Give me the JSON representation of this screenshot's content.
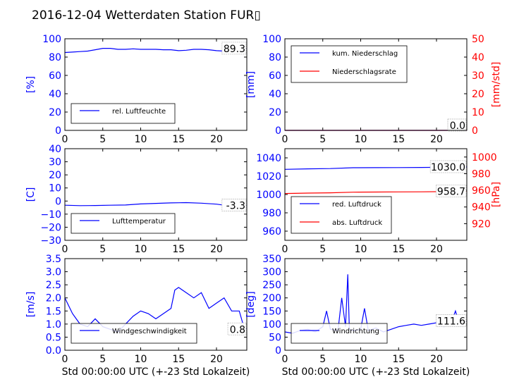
{
  "figure": {
    "title": "2016-12-04 Wetterdaten Station FUR▯"
  },
  "colors": {
    "blue": "#0000ff",
    "red": "#ff0000",
    "black": "#000000"
  },
  "chart_data": [
    {
      "id": "humidity",
      "type": "line",
      "xlim": [
        0,
        24
      ],
      "ylim": [
        0,
        100
      ],
      "xticks": [
        0,
        5,
        10,
        15,
        20
      ],
      "yticks": [
        0,
        20,
        40,
        60,
        80,
        100
      ],
      "ylabel": "[%]",
      "xlabel": "",
      "legend": {
        "placement": "lower-left",
        "entries": [
          "rel. Luftfeuchte"
        ]
      },
      "annotations": [
        {
          "text": "89.3",
          "x": 23.9,
          "y": 89.3
        }
      ],
      "series": [
        {
          "name": "rel. Luftfeuchte",
          "color": "#0000ff",
          "x": [
            0,
            1,
            2,
            3,
            4,
            5,
            6,
            7,
            8,
            9,
            10,
            11,
            12,
            13,
            14,
            15,
            16,
            17,
            18,
            19,
            20,
            21,
            22,
            23,
            24
          ],
          "y": [
            85,
            85.5,
            86,
            86.5,
            88,
            89.5,
            89.5,
            88.5,
            88.5,
            89,
            88.5,
            88.5,
            88.5,
            88,
            88,
            87,
            87.5,
            88.5,
            88.5,
            88,
            87,
            86.5,
            87,
            88,
            89.3
          ]
        }
      ]
    },
    {
      "id": "rain",
      "type": "line",
      "xlim": [
        0,
        24
      ],
      "ylim": [
        0,
        100
      ],
      "y2lim": [
        0,
        50
      ],
      "xticks": [
        0,
        5,
        10,
        15,
        20
      ],
      "yticks": [
        0,
        20,
        40,
        60,
        80,
        100
      ],
      "y2ticks": [
        0,
        10,
        20,
        30,
        40,
        50
      ],
      "ylabel": "[mm]",
      "y2label": "[mm/std]",
      "xlabel": "",
      "legend": {
        "placement": "upper-left",
        "entries": [
          "kum. Niederschlag",
          "Niederschlagsrate"
        ]
      },
      "annotations": [
        {
          "text": "0.0",
          "x": 23.9,
          "y": 0
        },
        {
          "text": "0.0",
          "x": 23.9,
          "y": 0
        }
      ],
      "series": [
        {
          "name": "kum. Niederschlag",
          "color": "#0000ff",
          "axis": "left",
          "x": [
            0,
            24
          ],
          "y": [
            0,
            0
          ]
        },
        {
          "name": "Niederschlagsrate",
          "color": "#ff0000",
          "axis": "right",
          "x": [
            0,
            24
          ],
          "y": [
            0,
            0
          ]
        }
      ]
    },
    {
      "id": "temperature",
      "type": "line",
      "xlim": [
        0,
        24
      ],
      "ylim": [
        -30,
        40
      ],
      "xticks": [
        0,
        5,
        10,
        15,
        20
      ],
      "yticks": [
        -30,
        -20,
        -10,
        0,
        10,
        20,
        30,
        40
      ],
      "ylabel": "[C]",
      "xlabel": "",
      "legend": {
        "placement": "lower-left",
        "entries": [
          "Lufttemperatur"
        ]
      },
      "annotations": [
        {
          "text": "-3.3",
          "x": 23.9,
          "y": -3.3
        }
      ],
      "series": [
        {
          "name": "Lufttemperatur",
          "color": "#0000ff",
          "x": [
            0,
            2,
            4,
            6,
            8,
            10,
            12,
            14,
            16,
            18,
            20,
            21,
            22,
            24
          ],
          "y": [
            -3.2,
            -3.5,
            -3.4,
            -3.2,
            -3.0,
            -2.2,
            -1.8,
            -1.4,
            -1.2,
            -1.6,
            -2.4,
            -3.2,
            -3.0,
            -3.3
          ]
        }
      ]
    },
    {
      "id": "pressure",
      "type": "line",
      "xlim": [
        0,
        24
      ],
      "ylim": [
        950,
        1050
      ],
      "y2lim": [
        900,
        1010
      ],
      "xticks": [
        0,
        5,
        10,
        15,
        20
      ],
      "yticks": [
        960,
        980,
        1000,
        1020,
        1040
      ],
      "y2ticks": [
        920,
        940,
        960,
        980,
        1000
      ],
      "ylabel": "",
      "y2label": "[hPa]",
      "xlabel": "",
      "legend": {
        "placement": "lower-left",
        "entries": [
          "red. Luftdruck",
          "abs. Luftdruck"
        ]
      },
      "annotations": [
        {
          "text": "1030.0",
          "x": 23.9,
          "y": 1030
        },
        {
          "text": "958.7",
          "x": 23.9,
          "y": 958.7
        }
      ],
      "series": [
        {
          "name": "red. Luftdruck",
          "color": "#0000ff",
          "axis": "left",
          "x": [
            0,
            3,
            6,
            9,
            12,
            15,
            18,
            21,
            24
          ],
          "y": [
            1027.5,
            1028,
            1028.3,
            1029.2,
            1029.3,
            1029.4,
            1029.5,
            1029.8,
            1030.0
          ]
        },
        {
          "name": "abs. Luftdruck",
          "color": "#ff0000",
          "axis": "right",
          "x": [
            0,
            3,
            6,
            9,
            12,
            15,
            18,
            21,
            24
          ],
          "y": [
            956.2,
            956.7,
            957.0,
            957.8,
            958.0,
            958.1,
            958.2,
            958.5,
            958.7
          ]
        }
      ]
    },
    {
      "id": "wind-speed",
      "type": "line",
      "xlim": [
        0,
        24
      ],
      "ylim": [
        0,
        3.5
      ],
      "xticks": [
        0,
        5,
        10,
        15,
        20
      ],
      "yticks": [
        0.0,
        0.5,
        1.0,
        1.5,
        2.0,
        2.5,
        3.0,
        3.5
      ],
      "ylabel": "[m/s]",
      "xlabel": "Std 00:00:00 UTC (+-23 Std Lokalzeit)",
      "legend": {
        "placement": "lower-left",
        "entries": [
          "Windgeschwindigkeit"
        ]
      },
      "annotations": [
        {
          "text": "0.8",
          "x": 23.9,
          "y": 0.8
        }
      ],
      "series": [
        {
          "name": "Windgeschwindigkeit",
          "color": "#0000ff",
          "x": [
            0,
            0.5,
            1,
            1.5,
            2,
            3,
            4,
            5,
            6,
            7,
            8,
            9,
            10,
            11,
            12,
            13,
            14,
            14.5,
            15,
            16,
            17,
            18,
            19,
            20,
            21,
            22,
            23,
            23.5,
            24
          ],
          "y": [
            2.0,
            1.7,
            1.4,
            1.2,
            1.0,
            0.9,
            1.2,
            0.9,
            0.8,
            0.7,
            1.0,
            1.3,
            1.5,
            1.4,
            1.2,
            1.4,
            1.6,
            2.3,
            2.4,
            2.2,
            2.0,
            2.2,
            1.6,
            1.8,
            2.0,
            1.5,
            1.5,
            1.0,
            0.8
          ]
        }
      ]
    },
    {
      "id": "wind-direction",
      "type": "line",
      "xlim": [
        0,
        24
      ],
      "ylim": [
        0,
        350
      ],
      "xticks": [
        0,
        5,
        10,
        15,
        20
      ],
      "yticks": [
        0,
        50,
        100,
        150,
        200,
        250,
        300,
        350
      ],
      "ylabel": "[deg]",
      "xlabel": "Std 00:00:00 UTC (+-23 Std Lokalzeit)",
      "legend": {
        "placement": "lower-left",
        "entries": [
          "Windrichtung"
        ]
      },
      "annotations": [
        {
          "text": "111.6",
          "x": 23.9,
          "y": 111.6
        }
      ],
      "series": [
        {
          "name": "Windrichtung",
          "color": "#0000ff",
          "x": [
            0,
            1,
            2,
            3,
            4,
            5,
            5.5,
            6,
            7,
            7.5,
            8,
            8.3,
            8.5,
            9,
            10,
            10.5,
            11,
            12,
            13,
            14,
            15,
            16,
            17,
            18,
            19,
            20,
            21,
            22,
            22.5,
            23,
            24
          ],
          "y": [
            70,
            65,
            75,
            80,
            70,
            90,
            150,
            80,
            75,
            200,
            90,
            290,
            80,
            75,
            80,
            160,
            75,
            85,
            70,
            80,
            90,
            95,
            100,
            95,
            100,
            105,
            90,
            110,
            150,
            100,
            111.6
          ]
        }
      ]
    }
  ]
}
